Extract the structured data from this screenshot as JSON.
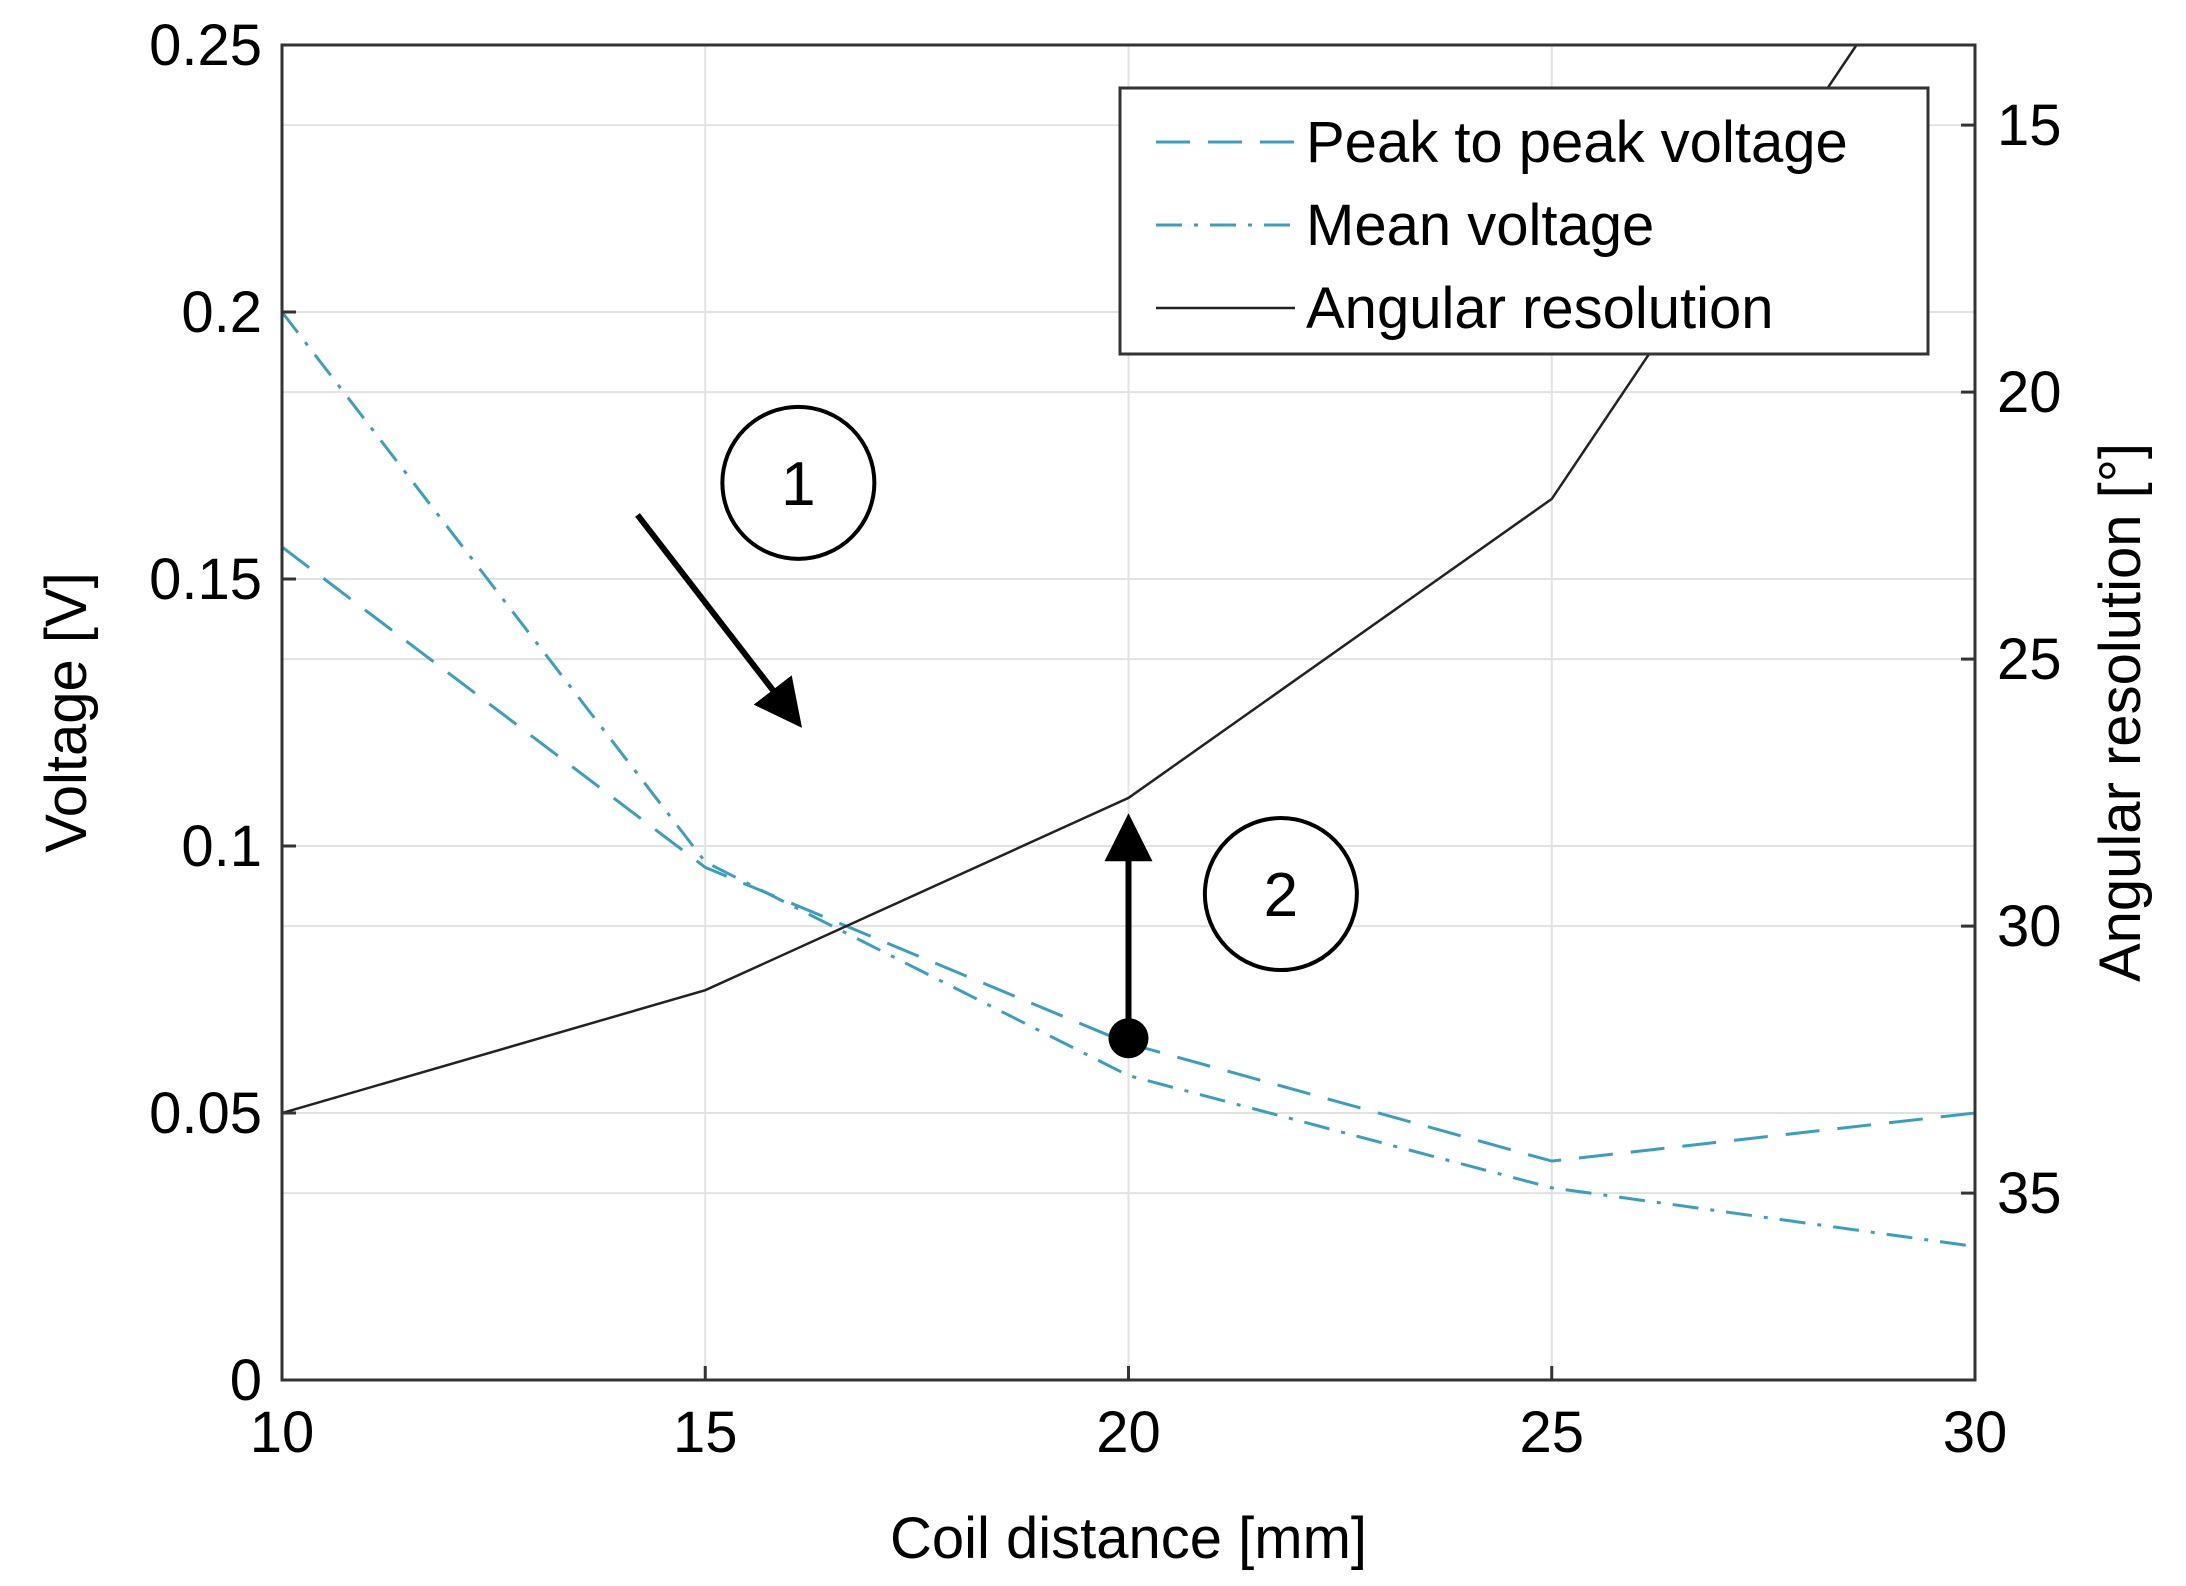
{
  "chart_data": {
    "type": "line",
    "title": "",
    "xlabel": "Coil distance [mm]",
    "ylabel_left": "Voltage [V]",
    "ylabel_right": "Angular resolution [°]",
    "xlim": [
      10,
      30
    ],
    "ylim_left": [
      0,
      0.25
    ],
    "ylim_right": [
      13.5,
      38.5
    ],
    "right_axis_reversed": true,
    "grid": true,
    "x_ticks": [
      10,
      15,
      20,
      25,
      30
    ],
    "x_tick_labels": [
      "10",
      "15",
      "20",
      "25",
      "30"
    ],
    "y_left_ticks": [
      0,
      0.05,
      0.1,
      0.15,
      0.2,
      0.25
    ],
    "y_left_tick_labels": [
      "0",
      "0.05",
      "0.1",
      "0.15",
      "0.2",
      "0.25"
    ],
    "y_right_ticks": [
      15,
      20,
      25,
      30,
      35
    ],
    "y_right_tick_labels": [
      "15",
      "20",
      "25",
      "30",
      "35"
    ],
    "legend_position": "top-right",
    "x": [
      10,
      15,
      20,
      25,
      30
    ],
    "series": [
      {
        "name": "Peak to peak voltage",
        "axis": "left",
        "style": "dashed",
        "color": "#3a9fbf",
        "values": [
          0.156,
          0.096,
          0.063,
          0.041,
          0.05
        ]
      },
      {
        "name": "Mean voltage",
        "axis": "left",
        "style": "dashdot",
        "color": "#3a9fbf",
        "values": [
          0.2,
          0.097,
          0.057,
          0.036,
          0.025
        ]
      },
      {
        "name": "Angular resolution",
        "axis": "right",
        "style": "solid",
        "color": "#222222",
        "x": [
          10,
          15,
          20,
          25,
          28.6
        ],
        "values": [
          33.5,
          31.2,
          27.6,
          22.0,
          13.5
        ]
      }
    ],
    "annotations": [
      {
        "label": "1",
        "type": "arrow",
        "from": [
          14.2,
          0.162
        ],
        "to": [
          16.1,
          0.123
        ],
        "circle_at": [
          16.1,
          0.168
        ]
      },
      {
        "label": "2",
        "type": "arrow",
        "from": [
          20,
          0.064
        ],
        "to": [
          20,
          0.105
        ],
        "circle_at": [
          21.8,
          0.091
        ]
      }
    ]
  }
}
